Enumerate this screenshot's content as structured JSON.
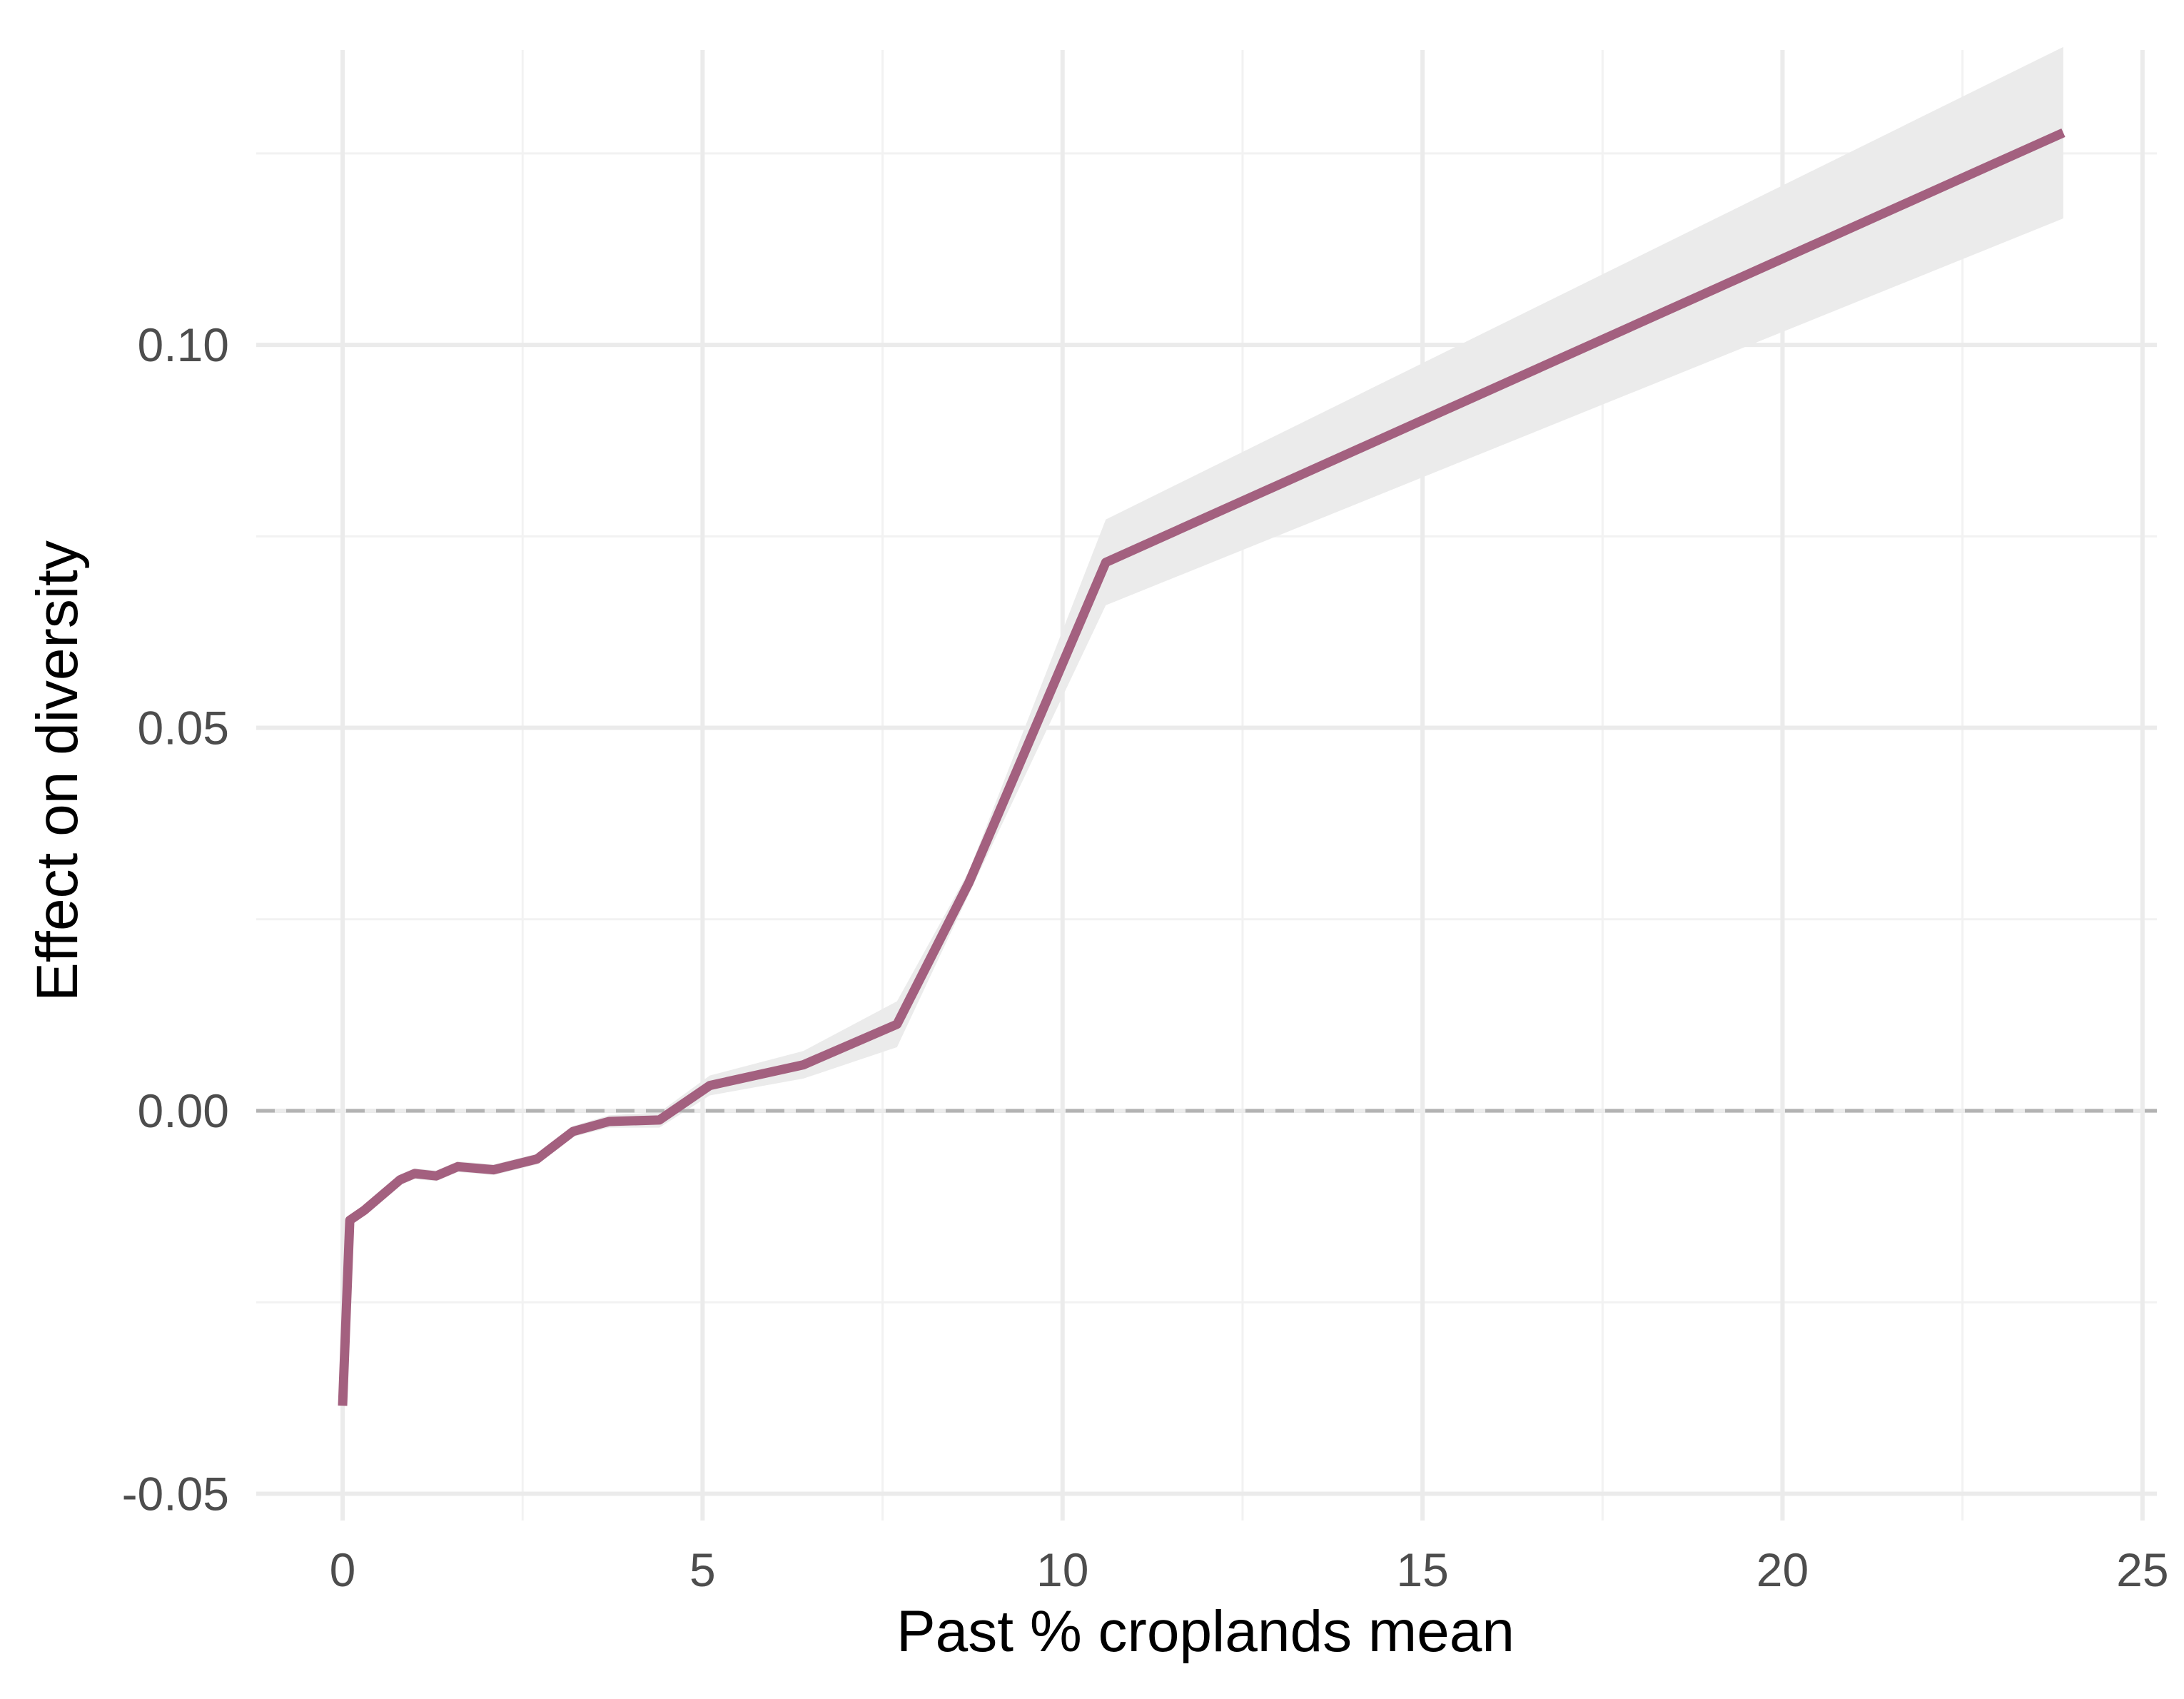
{
  "chart_data": {
    "type": "line",
    "title": "",
    "xlabel": "Past % croplands mean",
    "ylabel": "Effect on diversity",
    "xlim": [
      -1.2,
      25.2
    ],
    "ylim": [
      -0.0535,
      0.1385
    ],
    "x_ticks": [
      0,
      5,
      10,
      15,
      20,
      25
    ],
    "x_tick_labels": [
      "0",
      "5",
      "10",
      "15",
      "20",
      "25"
    ],
    "y_ticks": [
      -0.05,
      0.0,
      0.05,
      0.1
    ],
    "y_tick_labels": [
      "-0.05",
      "0.00",
      "0.05",
      "0.10"
    ],
    "grid": true,
    "reference_line": {
      "y": 0.0,
      "style": "dashed",
      "color": "#b3b3b3"
    },
    "series": [
      {
        "color": "#a3607f",
        "points": [
          {
            "x": 0.0,
            "y": -0.0385,
            "lower": -0.0385,
            "upper": -0.0385
          },
          {
            "x": 0.1,
            "y": -0.0143,
            "lower": -0.015,
            "upper": -0.0136
          },
          {
            "x": 0.3,
            "y": -0.013,
            "lower": -0.0137,
            "upper": -0.0123
          },
          {
            "x": 0.8,
            "y": -0.009,
            "lower": -0.0097,
            "upper": -0.0083
          },
          {
            "x": 1.0,
            "y": -0.0082,
            "lower": -0.0089,
            "upper": -0.0075
          },
          {
            "x": 1.3,
            "y": -0.0085,
            "lower": -0.0092,
            "upper": -0.0078
          },
          {
            "x": 1.6,
            "y": -0.0073,
            "lower": -0.008,
            "upper": -0.0066
          },
          {
            "x": 2.1,
            "y": -0.0077,
            "lower": -0.0084,
            "upper": -0.007
          },
          {
            "x": 2.7,
            "y": -0.0063,
            "lower": -0.007,
            "upper": -0.0056
          },
          {
            "x": 3.2,
            "y": -0.0027,
            "lower": -0.0034,
            "upper": -0.002
          },
          {
            "x": 3.7,
            "y": -0.0014,
            "lower": -0.0022,
            "upper": -0.0006
          },
          {
            "x": 4.4,
            "y": -0.0012,
            "lower": -0.0022,
            "upper": -0.0002
          },
          {
            "x": 5.1,
            "y": 0.0033,
            "lower": 0.002,
            "upper": 0.0046
          },
          {
            "x": 6.4,
            "y": 0.006,
            "lower": 0.0042,
            "upper": 0.0078
          },
          {
            "x": 7.7,
            "y": 0.0113,
            "lower": 0.0083,
            "upper": 0.0143
          },
          {
            "x": 8.7,
            "y": 0.0298,
            "lower": 0.0283,
            "upper": 0.0313
          },
          {
            "x": 10.6,
            "y": 0.0716,
            "lower": 0.066,
            "upper": 0.0772
          },
          {
            "x": 23.9,
            "y": 0.1277,
            "lower": 0.1165,
            "upper": 0.1389
          }
        ]
      }
    ]
  },
  "colors": {
    "background": "#ffffff",
    "grid_major": "#ebebeb",
    "grid_minor": "#f2f2f2",
    "ribbon": "#ebebeb",
    "line": "#a3607f",
    "reference": "#b3b3b3",
    "tick_text": "#4d4d4d",
    "title_text": "#000000"
  }
}
